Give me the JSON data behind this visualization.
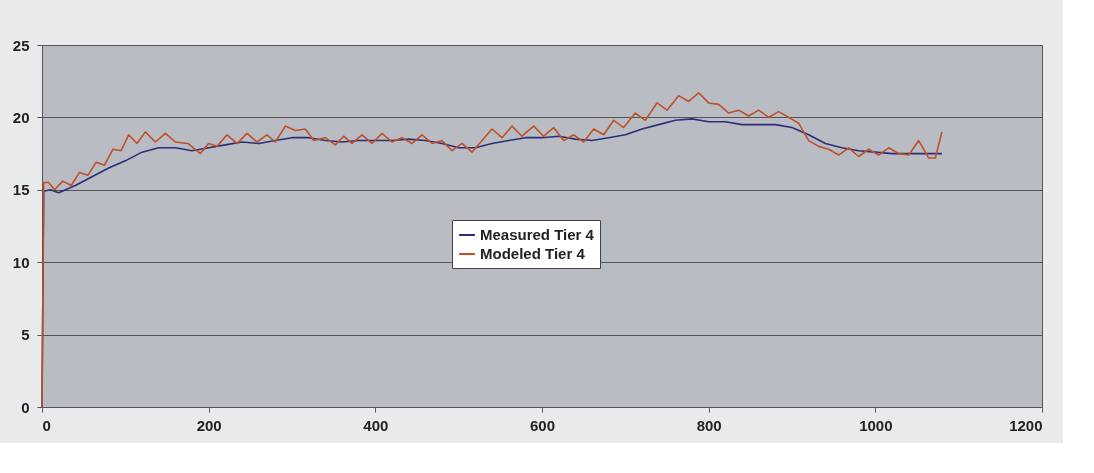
{
  "chart_data": {
    "type": "line",
    "xlim": [
      0,
      1200
    ],
    "xticks": [
      0,
      200,
      400,
      600,
      800,
      1000,
      1200
    ],
    "ylim": [
      0,
      25
    ],
    "yticks": [
      0,
      5,
      10,
      15,
      20,
      25
    ],
    "grid": "y",
    "legend": "center",
    "marker": "none",
    "line_style": "solid",
    "series": [
      {
        "name": "Measured Tier 4",
        "color": "#2b2f7a",
        "x": [
          0,
          2,
          10,
          20,
          40,
          60,
          80,
          100,
          120,
          140,
          160,
          180,
          200,
          220,
          240,
          260,
          280,
          300,
          320,
          340,
          360,
          380,
          400,
          420,
          440,
          460,
          480,
          500,
          520,
          540,
          560,
          580,
          600,
          620,
          640,
          660,
          680,
          700,
          720,
          740,
          760,
          780,
          800,
          820,
          840,
          860,
          880,
          900,
          920,
          940,
          960,
          980,
          1000,
          1020,
          1040,
          1060,
          1080
        ],
        "values": [
          0,
          14.9,
          15.0,
          14.8,
          15.3,
          15.9,
          16.5,
          17.0,
          17.6,
          17.9,
          17.9,
          17.7,
          17.9,
          18.1,
          18.3,
          18.2,
          18.4,
          18.6,
          18.6,
          18.4,
          18.3,
          18.4,
          18.4,
          18.4,
          18.5,
          18.4,
          18.2,
          17.9,
          17.9,
          18.2,
          18.4,
          18.6,
          18.6,
          18.7,
          18.5,
          18.4,
          18.6,
          18.8,
          19.2,
          19.5,
          19.8,
          19.9,
          19.7,
          19.7,
          19.5,
          19.5,
          19.5,
          19.3,
          18.8,
          18.2,
          17.9,
          17.7,
          17.6,
          17.5,
          17.5,
          17.5,
          17.5
        ]
      },
      {
        "name": "Modeled Tier 4",
        "color": "#c0502a",
        "x": [
          0,
          2,
          8,
          15,
          25,
          35,
          45,
          55,
          65,
          75,
          85,
          95,
          104,
          114,
          124,
          136,
          148,
          160,
          175,
          190,
          200,
          210,
          222,
          234,
          246,
          258,
          270,
          280,
          292,
          304,
          316,
          326,
          340,
          352,
          362,
          372,
          384,
          396,
          408,
          420,
          432,
          444,
          456,
          468,
          480,
          492,
          504,
          516,
          528,
          540,
          552,
          564,
          576,
          590,
          602,
          614,
          626,
          638,
          650,
          662,
          674,
          686,
          698,
          712,
          724,
          738,
          750,
          764,
          776,
          788,
          800,
          812,
          824,
          836,
          848,
          860,
          872,
          884,
          896,
          908,
          920,
          932,
          944,
          956,
          968,
          980,
          992,
          1004,
          1016,
          1028,
          1040,
          1052,
          1064,
          1072,
          1080
        ],
        "values": [
          0,
          15.5,
          15.5,
          15.0,
          15.6,
          15.3,
          16.2,
          16.0,
          16.9,
          16.7,
          17.8,
          17.7,
          18.8,
          18.2,
          19.0,
          18.3,
          18.9,
          18.3,
          18.2,
          17.5,
          18.2,
          18.0,
          18.8,
          18.2,
          18.9,
          18.3,
          18.8,
          18.3,
          19.4,
          19.1,
          19.2,
          18.4,
          18.6,
          18.1,
          18.7,
          18.2,
          18.8,
          18.2,
          18.9,
          18.3,
          18.6,
          18.2,
          18.8,
          18.2,
          18.4,
          17.7,
          18.2,
          17.6,
          18.4,
          19.2,
          18.6,
          19.4,
          18.7,
          19.4,
          18.7,
          19.3,
          18.4,
          18.8,
          18.3,
          19.2,
          18.8,
          19.8,
          19.3,
          20.3,
          19.8,
          21.0,
          20.5,
          21.5,
          21.1,
          21.7,
          21.0,
          20.9,
          20.3,
          20.5,
          20.1,
          20.5,
          20.0,
          20.4,
          20.0,
          19.6,
          18.4,
          18.0,
          17.8,
          17.4,
          17.9,
          17.3,
          17.8,
          17.4,
          17.9,
          17.5,
          17.4,
          18.4,
          17.2,
          17.2,
          19.0
        ]
      }
    ]
  }
}
